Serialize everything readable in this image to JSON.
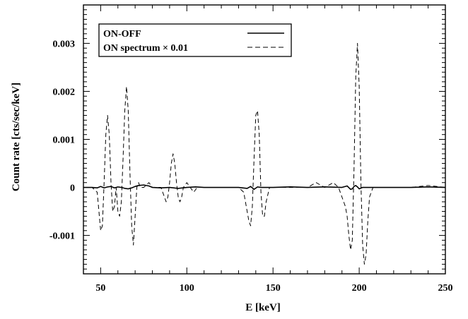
{
  "chart_data": {
    "type": "line",
    "xlabel": "E [keV]",
    "ylabel": "Count rate [cts/sec/keV]",
    "xlim": [
      40,
      250
    ],
    "ylim": [
      -0.0018,
      0.0038
    ],
    "xticks": [
      50,
      100,
      150,
      200,
      250
    ],
    "xtick_labels": [
      "50",
      "100",
      "150",
      "200",
      "250"
    ],
    "yticks": [
      -0.001,
      0,
      0.001,
      0.002,
      0.003
    ],
    "ytick_labels": [
      "-0.001",
      "0",
      "0.001",
      "0.002",
      "0.003"
    ],
    "legend_position": "top-left",
    "grid": false,
    "series": [
      {
        "name": "ON-OFF",
        "style": "solid",
        "x": [
          40,
          45,
          48,
          50,
          52,
          54,
          56,
          58,
          60,
          62,
          64,
          66,
          68,
          70,
          72,
          75,
          78,
          80,
          85,
          90,
          95,
          100,
          105,
          110,
          120,
          130,
          135,
          137,
          139,
          141,
          143,
          145,
          150,
          160,
          170,
          180,
          190,
          193,
          195,
          196,
          197,
          198,
          199,
          200,
          202,
          205,
          210,
          220,
          230,
          240,
          250
        ],
        "y": [
          0.0,
          0.0,
          -1e-05,
          2e-05,
          -1e-05,
          1e-05,
          2e-05,
          -1e-05,
          1e-05,
          0.0,
          -2e-05,
          -3e-05,
          -1e-05,
          2e-05,
          4e-05,
          5e-05,
          3e-05,
          0.0,
          -1e-05,
          0.0,
          -2e-05,
          0.0,
          1e-05,
          0.0,
          0.0,
          0.0,
          -2e-05,
          2e-05,
          -4e-05,
          1e-05,
          0.0,
          0.0,
          0.0,
          1e-05,
          0.0,
          1e-05,
          0.0,
          3e-05,
          -4e-05,
          -3e-05,
          2e-05,
          4e-05,
          1e-05,
          -3e-05,
          0.0,
          0.0,
          0.0,
          0.0,
          0.0,
          1e-05,
          0.0
        ]
      },
      {
        "name": "ON spectrum × 0.01",
        "style": "dashed",
        "x": [
          40,
          45,
          48,
          49,
          50,
          51,
          52,
          53,
          54,
          55,
          56,
          57,
          58,
          59,
          60,
          61,
          62,
          63,
          64,
          65,
          66,
          67,
          68,
          69,
          70,
          71,
          72,
          73,
          75,
          78,
          80,
          82,
          85,
          87,
          88,
          89,
          90,
          91,
          92,
          93,
          94,
          95,
          96,
          97,
          98,
          100,
          102,
          104,
          106,
          110,
          115,
          120,
          125,
          130,
          133,
          135,
          136,
          137,
          138,
          139,
          140,
          141,
          142,
          143,
          144,
          145,
          146,
          148,
          150,
          155,
          160,
          165,
          170,
          175,
          180,
          185,
          188,
          190,
          192,
          193,
          194,
          195,
          196,
          197,
          198,
          199,
          200,
          201,
          202,
          203,
          204,
          205,
          206,
          208,
          210,
          215,
          220,
          230,
          240,
          250
        ],
        "y": [
          0.0,
          0.0,
          -0.0001,
          -0.0005,
          -0.0009,
          -0.0008,
          0.0001,
          0.0011,
          0.0015,
          0.0011,
          0.0001,
          -0.0005,
          -0.0004,
          0.0,
          -0.0005,
          -0.0006,
          -0.0003,
          0.0006,
          0.0016,
          0.0021,
          0.0016,
          0.0003,
          -0.0008,
          -0.0012,
          -0.0006,
          0.0,
          0.0001,
          0.0,
          0.0,
          0.0001,
          0.0,
          0.0,
          0.0,
          -0.0002,
          -0.0003,
          -0.0002,
          0.0001,
          0.0005,
          0.0007,
          0.0005,
          0.0001,
          -0.0002,
          -0.0003,
          -0.0002,
          0.0,
          0.0001,
          0.0,
          -0.0001,
          0.0,
          0.0,
          0.0,
          0.0,
          0.0,
          0.0,
          -0.0001,
          -0.0005,
          -0.0007,
          -0.0008,
          -0.0004,
          0.0006,
          0.0015,
          0.0016,
          0.0011,
          -0.0001,
          -0.0006,
          -0.0006,
          -0.0003,
          0.0,
          0.0,
          0.0,
          0.0,
          0.0,
          0.0,
          0.0001,
          0.0,
          0.0001,
          0.0,
          -0.0002,
          -0.0004,
          -0.0006,
          -0.001,
          -0.0013,
          -0.0011,
          0.0004,
          0.0023,
          0.003,
          0.0021,
          0.0001,
          -0.0012,
          -0.0016,
          -0.0014,
          -0.0007,
          -0.0002,
          0.0,
          0.0,
          0.0,
          0.0,
          0.0,
          4e-05,
          0.0
        ]
      }
    ]
  }
}
